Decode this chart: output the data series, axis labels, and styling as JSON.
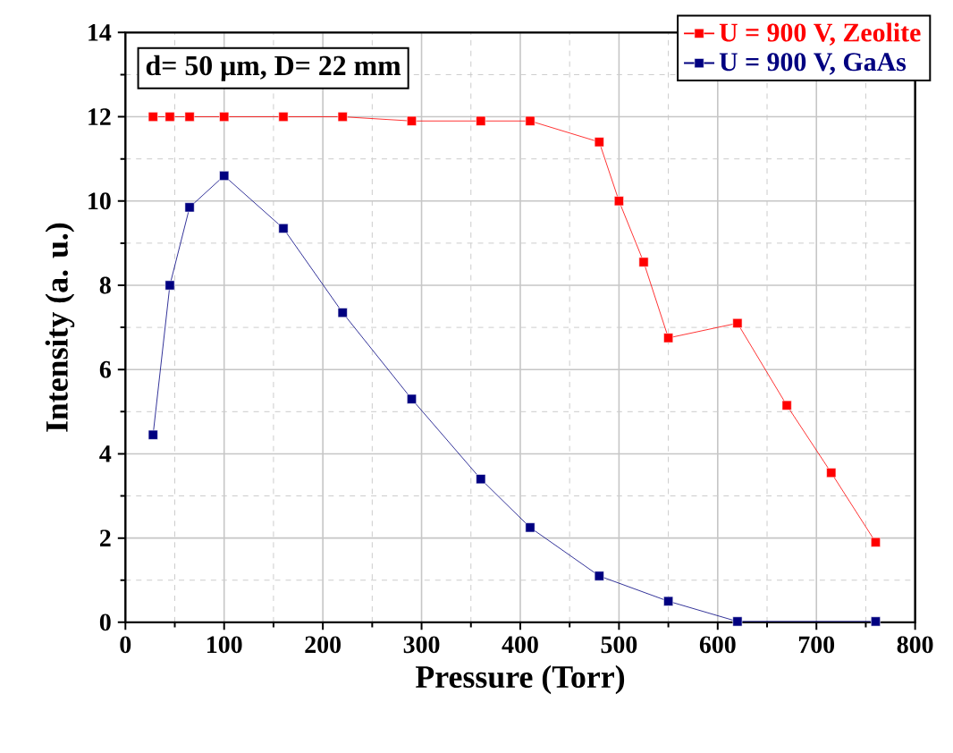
{
  "chart_data": {
    "type": "line",
    "xlabel": "Pressure (Torr)",
    "ylabel": "Intensity (a. u.)",
    "xlim": [
      0,
      800
    ],
    "ylim": [
      0,
      14
    ],
    "xticks": [
      0,
      100,
      200,
      300,
      400,
      500,
      600,
      700,
      800
    ],
    "yticks": [
      0,
      2,
      4,
      6,
      8,
      10,
      12,
      14
    ],
    "grid": true,
    "legend": "top right",
    "marker": "square",
    "line_style": "solid",
    "annotations": [
      "d= 50 μm, D= 22 mm"
    ],
    "series": [
      {
        "name": "U = 900 V, Zeolite",
        "color": "#ff0000",
        "x": [
          28,
          45,
          65,
          100,
          160,
          220,
          290,
          360,
          410,
          480,
          500,
          525,
          550,
          620,
          670,
          715,
          760
        ],
        "values": [
          12,
          12,
          12,
          12,
          12,
          12,
          11.9,
          11.9,
          11.9,
          11.4,
          10.0,
          8.55,
          6.75,
          7.1,
          5.15,
          3.55,
          1.9
        ]
      },
      {
        "name": "U = 900 V, GaAs",
        "color": "#000080",
        "x": [
          28,
          45,
          65,
          100,
          160,
          220,
          290,
          360,
          410,
          480,
          550,
          620,
          760
        ],
        "values": [
          4.45,
          8.0,
          9.85,
          10.6,
          9.35,
          7.35,
          5.3,
          3.4,
          2.25,
          1.1,
          0.5,
          0.02,
          0.02
        ]
      }
    ]
  }
}
